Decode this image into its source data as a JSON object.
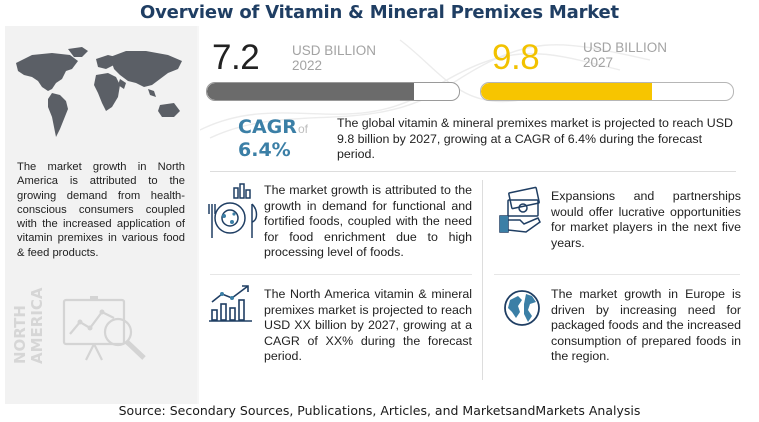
{
  "title": "Overview of Vitamin & Mineral Premixes Market",
  "left_panel": {
    "text": "The market growth in North America is attributed to the growing demand from health-conscious consumers coupled with the increased application of vitamin premixes in various food & feed products.",
    "region_label": "NORTH AMERICA",
    "map_icon": "world-map-icon",
    "chart_icon": "analytics-magnifier-icon"
  },
  "stats": {
    "start": {
      "value": "7.2",
      "unit": "USD BILLION",
      "year": "2022",
      "fraction": 0.82
    },
    "end": {
      "value": "9.8",
      "unit": "USD BILLION",
      "year": "2027",
      "fraction": 0.68
    },
    "cagr_label": "CAGR",
    "cagr_of": "of",
    "cagr_value": "6.4%",
    "summary": "The global vitamin & mineral premixes market is projected to reach USD 9.8 billion by 2027, growing at a CAGR of 6.4% during the forecast period."
  },
  "insights": [
    {
      "icon": "food-chart-icon",
      "text": "The market growth is attributed to the growth in demand for functional and fortified foods, coupled with the need for food enrichment due to high processing level of foods."
    },
    {
      "icon": "money-hand-icon",
      "text": "Expansions and partnerships would offer lucrative opportunities for market players in the next five years."
    },
    {
      "icon": "growth-chart-icon",
      "text": "The North America vitamin & mineral premixes market is projected to reach USD XX billion by 2027, growing at a CAGR of XX% during the forecast period."
    },
    {
      "icon": "globe-icon",
      "text": "The market growth in Europe is driven by increasing need for packaged foods and the increased consumption of prepared foods in the region."
    }
  ],
  "colors": {
    "title": "#1f3e63",
    "accent_blue": "#3b7fa6",
    "accent_yellow": "#f7c500",
    "bar_gray": "#6b6b6b"
  },
  "source": "Source: Secondary Sources, Publications, Articles, and MarketsandMarkets Analysis"
}
